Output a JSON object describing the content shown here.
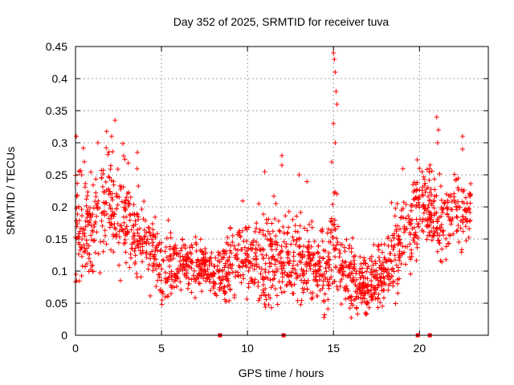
{
  "chart_data": {
    "type": "scatter",
    "title": "Day 352 of 2025, SRMTID for receiver tuva",
    "xlabel": "GPS time / hours",
    "ylabel": "SRMTID / TECUs",
    "xlim": [
      0,
      24
    ],
    "ylim": [
      0,
      0.45
    ],
    "xticks": [
      0,
      5,
      10,
      15,
      20
    ],
    "xtick_labels": [
      "0",
      "5",
      "10",
      "15",
      "20"
    ],
    "yticks": [
      0,
      0.05,
      0.1,
      0.15,
      0.2,
      0.25,
      0.3,
      0.35,
      0.4,
      0.45
    ],
    "ytick_labels": [
      "0",
      "0.05",
      "0.1",
      "0.15",
      "0.2",
      "0.25",
      "0.3",
      "0.35",
      "0.4",
      "0.45"
    ],
    "grid": true,
    "marker": "+",
    "color": "#ff0000",
    "series": [
      {
        "name": "SRMTID",
        "profile": {
          "x": [
            0.0,
            0.5,
            1.0,
            1.5,
            2.0,
            2.5,
            3.0,
            3.5,
            4.0,
            4.5,
            5.0,
            6.0,
            7.0,
            8.0,
            8.5,
            9.0,
            9.5,
            10.0,
            10.5,
            11.0,
            12.0,
            13.0,
            14.0,
            14.5,
            15.0,
            15.5,
            16.0,
            16.5,
            17.0,
            17.5,
            18.0,
            18.5,
            19.0,
            19.5,
            20.0,
            20.5,
            21.0,
            22.0,
            23.0
          ],
          "y": [
            0.16,
            0.17,
            0.15,
            0.2,
            0.22,
            0.18,
            0.17,
            0.16,
            0.15,
            0.13,
            0.1,
            0.11,
            0.11,
            0.1,
            0.09,
            0.11,
            0.12,
            0.13,
            0.12,
            0.11,
            0.12,
            0.12,
            0.11,
            0.09,
            0.16,
            0.11,
            0.09,
            0.08,
            0.07,
            0.08,
            0.1,
            0.12,
            0.15,
            0.16,
            0.21,
            0.2,
            0.18,
            0.19,
            0.19
          ]
        },
        "spread_profile": [
          0.09,
          0.08,
          0.07,
          0.08,
          0.09,
          0.07,
          0.06,
          0.06,
          0.05,
          0.05,
          0.05,
          0.04,
          0.04,
          0.03,
          0.04,
          0.05,
          0.05,
          0.05,
          0.05,
          0.06,
          0.06,
          0.06,
          0.06,
          0.06,
          0.07,
          0.05,
          0.05,
          0.05,
          0.04,
          0.04,
          0.04,
          0.05,
          0.05,
          0.06,
          0.06,
          0.06,
          0.06,
          0.05,
          0.05
        ],
        "spikes": [
          {
            "x": 0.05,
            "y": 0.31
          },
          {
            "x": 2.3,
            "y": 0.335
          },
          {
            "x": 2.1,
            "y": 0.31
          },
          {
            "x": 1.3,
            "y": 0.3
          },
          {
            "x": 3.6,
            "y": 0.285
          },
          {
            "x": 11.0,
            "y": 0.255
          },
          {
            "x": 12.0,
            "y": 0.28
          },
          {
            "x": 12.0,
            "y": 0.265
          },
          {
            "x": 13.0,
            "y": 0.25
          },
          {
            "x": 15.0,
            "y": 0.44
          },
          {
            "x": 15.05,
            "y": 0.43
          },
          {
            "x": 15.1,
            "y": 0.41
          },
          {
            "x": 15.15,
            "y": 0.38
          },
          {
            "x": 15.2,
            "y": 0.36
          },
          {
            "x": 15.0,
            "y": 0.33
          },
          {
            "x": 15.1,
            "y": 0.3
          },
          {
            "x": 14.9,
            "y": 0.27
          },
          {
            "x": 20.0,
            "y": 0.26
          },
          {
            "x": 21.0,
            "y": 0.34
          },
          {
            "x": 21.1,
            "y": 0.32
          },
          {
            "x": 21.05,
            "y": 0.3
          },
          {
            "x": 22.5,
            "y": 0.31
          },
          {
            "x": 22.5,
            "y": 0.29
          }
        ],
        "point_count": 1800
      }
    ],
    "x_axis_markers": [
      {
        "x": 8.4,
        "y": 0
      },
      {
        "x": 12.1,
        "y": 0
      },
      {
        "x": 19.9,
        "y": 0
      },
      {
        "x": 20.6,
        "y": 0
      }
    ]
  }
}
